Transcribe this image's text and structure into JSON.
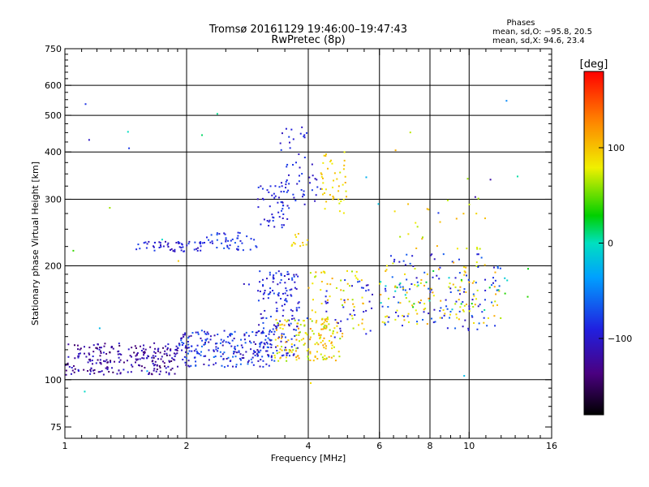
{
  "header": {
    "title_line1": "Tromsø 20161129 19:46:00–19:47:43",
    "title_line2": "RwPretec (8p)"
  },
  "stats": {
    "heading": "Phases",
    "line_o": "mean, sd,O: −95.8, 20.5",
    "line_x": "mean, sd,X:  94.6, 23.4"
  },
  "colorbar": {
    "unit": "[deg]",
    "ticks": [
      {
        "value": 100,
        "label": "100"
      },
      {
        "value": 0,
        "label": "0"
      },
      {
        "value": -100,
        "label": "−100"
      }
    ],
    "range": [
      -180,
      180
    ],
    "colormap": "black-purple-blue-cyan-green-yellow-orange-red"
  },
  "chart_data": {
    "type": "scatter",
    "title": "Tromsø 20161129 19:46:00–19:47:43",
    "subtitle": "RwPretec (8p)",
    "xlabel": "Frequency [MHz]",
    "ylabel": "Stationary phase Virtual Height [km]",
    "xscale": "log",
    "yscale": "log",
    "xlim": [
      1,
      16
    ],
    "ylim": [
      70,
      750
    ],
    "xticks": [
      {
        "value": 1,
        "label": "1"
      },
      {
        "value": 2,
        "label": "2"
      },
      {
        "value": 4,
        "label": "4"
      },
      {
        "value": 6,
        "label": "6"
      },
      {
        "value": 8,
        "label": "8"
      },
      {
        "value": 10,
        "label": "10"
      },
      {
        "value": 16,
        "label": "16"
      }
    ],
    "yticks": [
      {
        "value": 75,
        "label": "75"
      },
      {
        "value": 100,
        "label": "100"
      },
      {
        "value": 200,
        "label": "200"
      },
      {
        "value": 300,
        "label": "300"
      },
      {
        "value": 400,
        "label": "400"
      },
      {
        "value": 500,
        "label": "500"
      },
      {
        "value": 600,
        "label": "600"
      },
      {
        "value": 750,
        "label": "750"
      }
    ],
    "x_gridlines": [
      2,
      4,
      6,
      8,
      10
    ],
    "y_gridlines": [
      100,
      200,
      300,
      400,
      500,
      600
    ],
    "color_variable": "phase [deg]",
    "clusters": [
      {
        "x": [
          1.0,
          1.9
        ],
        "y": [
          103,
          125
        ],
        "phase": [
          -150,
          -95
        ],
        "n": 240
      },
      {
        "x": [
          1.9,
          3.3
        ],
        "y": [
          108,
          135
        ],
        "phase": [
          -120,
          -55
        ],
        "n": 220
      },
      {
        "x": [
          3.0,
          3.8
        ],
        "y": [
          115,
          195
        ],
        "phase": [
          -115,
          -65
        ],
        "n": 160
      },
      {
        "x": [
          3.3,
          4.8
        ],
        "y": [
          112,
          145
        ],
        "phase": [
          55,
          125
        ],
        "n": 150
      },
      {
        "x": [
          4.0,
          5.5
        ],
        "y": [
          130,
          195
        ],
        "phase": [
          60,
          115
        ],
        "n": 60
      },
      {
        "x": [
          4.3,
          5.8
        ],
        "y": [
          125,
          185
        ],
        "phase": [
          -110,
          -75
        ],
        "n": 35
      },
      {
        "x": [
          1.5,
          2.2
        ],
        "y": [
          218,
          232
        ],
        "phase": [
          -115,
          -75
        ],
        "n": 55
      },
      {
        "x": [
          2.2,
          3.0
        ],
        "y": [
          220,
          245
        ],
        "phase": [
          -100,
          -65
        ],
        "n": 45
      },
      {
        "x": [
          3.0,
          3.6
        ],
        "y": [
          250,
          330
        ],
        "phase": [
          -110,
          -75
        ],
        "n": 50
      },
      {
        "x": [
          3.4,
          4.3
        ],
        "y": [
          290,
          470
        ],
        "phase": [
          -110,
          -75
        ],
        "n": 55
      },
      {
        "x": [
          4.3,
          5.0
        ],
        "y": [
          270,
          400
        ],
        "phase": [
          70,
          110
        ],
        "n": 45
      },
      {
        "x": [
          3.6,
          4.0
        ],
        "y": [
          225,
          245
        ],
        "phase": [
          75,
          105
        ],
        "n": 12
      },
      {
        "x": [
          6.0,
          12.0
        ],
        "y": [
          135,
          215
        ],
        "phase": [
          -110,
          -60
        ],
        "n": 120
      },
      {
        "x": [
          6.0,
          12.0
        ],
        "y": [
          140,
          205
        ],
        "phase": [
          65,
          120
        ],
        "n": 100
      },
      {
        "x": [
          6.5,
          11.0
        ],
        "y": [
          220,
          310
        ],
        "phase": [
          60,
          110
        ],
        "n": 25
      },
      {
        "x": [
          6.0,
          14.0
        ],
        "y": [
          150,
          200
        ],
        "phase": [
          -20,
          40
        ],
        "n": 25
      },
      {
        "x": [
          1.0,
          14.0
        ],
        "y": [
          90,
          560
        ],
        "phase": [
          -120,
          110
        ],
        "n": 30
      }
    ]
  }
}
